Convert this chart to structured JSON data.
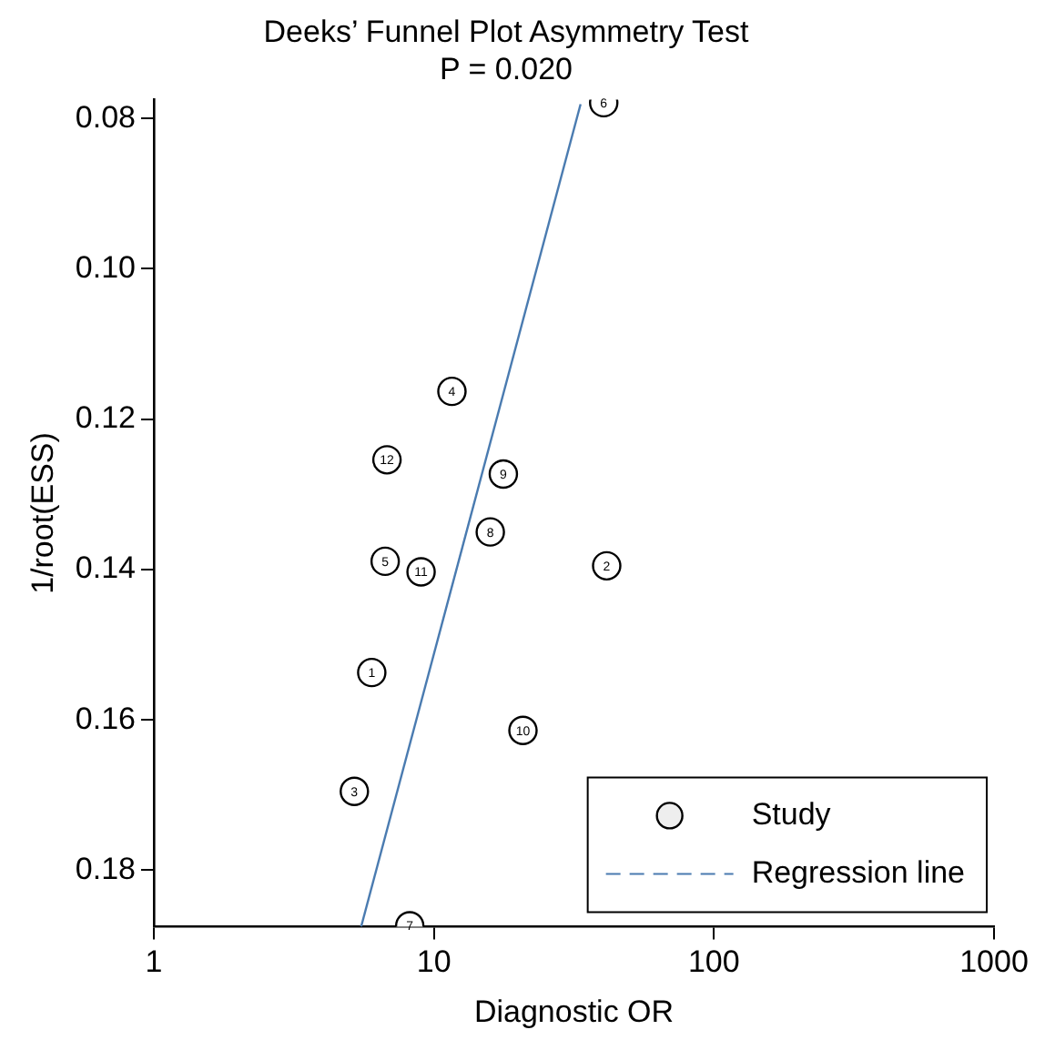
{
  "chart_data": {
    "type": "scatter",
    "title": "Deeks’ Funnel Plot Asymmetry Test",
    "subtitle": "P = 0.020",
    "xlabel": "Diagnostic OR",
    "ylabel": "1/root(ESS)",
    "log": "x",
    "xlim": [
      1,
      1000
    ],
    "xticks": [
      1,
      10,
      100,
      1000
    ],
    "ylim": [
      0.1875,
      0.0775
    ],
    "yticks": [
      0.08,
      {
        "value": 0.1,
        "label": "0.10"
      },
      0.12,
      0.14,
      0.16,
      0.18
    ],
    "grid": false,
    "legend": "bottom right",
    "annotations": [
      {
        "text": "1",
        "x": 6.0,
        "y": 0.1537
      },
      {
        "text": "2",
        "x": 41.4,
        "y": 0.1395
      },
      {
        "text": "3",
        "x": 5.2,
        "y": 0.1695
      },
      {
        "text": "4",
        "x": 11.6,
        "y": 0.1163
      },
      {
        "text": "5",
        "x": 6.7,
        "y": 0.1389
      },
      {
        "text": "6",
        "x": 40.4,
        "y": 0.0779
      },
      {
        "text": "7",
        "x": 8.2,
        "y": 0.1874
      },
      {
        "text": "8",
        "x": 15.9,
        "y": 0.135
      },
      {
        "text": "9",
        "x": 17.7,
        "y": 0.1273
      },
      {
        "text": "10",
        "x": 20.8,
        "y": 0.1614
      },
      {
        "text": "11",
        "x": 9.0,
        "y": 0.1403
      },
      {
        "text": "12",
        "x": 6.8,
        "y": 0.1254
      }
    ],
    "series": [
      {
        "name": "Study",
        "marker": "circle",
        "color": "#000000",
        "x": [
          6.0,
          41.4,
          5.2,
          11.6,
          6.7,
          40.4,
          8.2,
          15.9,
          17.7,
          20.8,
          9.0,
          6.8
        ],
        "values": [
          0.1537,
          0.1395,
          0.1695,
          0.1163,
          0.1389,
          0.0779,
          0.1874,
          0.135,
          0.1273,
          0.1614,
          0.1403,
          0.1254
        ]
      },
      {
        "name": "Regression line",
        "type": "line",
        "color": "#4a7bb0",
        "x": [
          5.5,
          33.4
        ],
        "values": [
          0.1875,
          0.0781
        ]
      }
    ]
  }
}
